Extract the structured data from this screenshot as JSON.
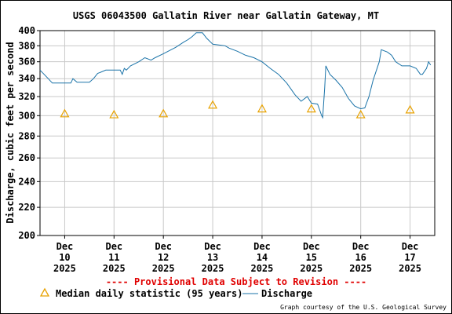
{
  "chart_data": {
    "type": "line",
    "title": "USGS 06043500 Gallatin River near Gallatin Gateway, MT",
    "ylabel": "Discharge, cubic feet per second",
    "y_scale": "log",
    "ylim": [
      200,
      400
    ],
    "y_ticks": [
      200,
      220,
      240,
      260,
      280,
      300,
      320,
      340,
      360,
      380,
      400
    ],
    "xlim": [
      "2025-12-09T12:00",
      "2025-12-17T12:00"
    ],
    "x_ticks": [
      {
        "month": "Dec",
        "day": "10",
        "year": "2025"
      },
      {
        "month": "Dec",
        "day": "11",
        "year": "2025"
      },
      {
        "month": "Dec",
        "day": "12",
        "year": "2025"
      },
      {
        "month": "Dec",
        "day": "13",
        "year": "2025"
      },
      {
        "month": "Dec",
        "day": "14",
        "year": "2025"
      },
      {
        "month": "Dec",
        "day": "15",
        "year": "2025"
      },
      {
        "month": "Dec",
        "day": "16",
        "year": "2025"
      },
      {
        "month": "Dec",
        "day": "17",
        "year": "2025"
      }
    ],
    "grid": true,
    "series": [
      {
        "name": "Discharge",
        "color": "#1a73a8",
        "points": [
          [
            "2025-12-09T12:00",
            350
          ],
          [
            "2025-12-09T14:00",
            345
          ],
          [
            "2025-12-09T16:00",
            340
          ],
          [
            "2025-12-09T18:00",
            335
          ],
          [
            "2025-12-09T21:00",
            335
          ],
          [
            "2025-12-10T00:00",
            335
          ],
          [
            "2025-12-10T03:00",
            335
          ],
          [
            "2025-12-10T04:00",
            340
          ],
          [
            "2025-12-10T06:00",
            336
          ],
          [
            "2025-12-10T12:00",
            336
          ],
          [
            "2025-12-10T14:00",
            340
          ],
          [
            "2025-12-10T16:00",
            346
          ],
          [
            "2025-12-10T20:00",
            350
          ],
          [
            "2025-12-11T00:00",
            350
          ],
          [
            "2025-12-11T03:00",
            350
          ],
          [
            "2025-12-11T04:00",
            345
          ],
          [
            "2025-12-11T05:00",
            352
          ],
          [
            "2025-12-11T06:00",
            350
          ],
          [
            "2025-12-11T08:00",
            355
          ],
          [
            "2025-12-11T12:00",
            360
          ],
          [
            "2025-12-11T15:00",
            365
          ],
          [
            "2025-12-11T18:00",
            362
          ],
          [
            "2025-12-11T20:00",
            365
          ],
          [
            "2025-12-12T00:00",
            370
          ],
          [
            "2025-12-12T06:00",
            378
          ],
          [
            "2025-12-12T10:00",
            385
          ],
          [
            "2025-12-12T12:00",
            388
          ],
          [
            "2025-12-12T14:00",
            392
          ],
          [
            "2025-12-12T16:00",
            397
          ],
          [
            "2025-12-12T19:00",
            397
          ],
          [
            "2025-12-12T21:00",
            390
          ],
          [
            "2025-12-13T00:00",
            382
          ],
          [
            "2025-12-13T06:00",
            380
          ],
          [
            "2025-12-13T08:00",
            377
          ],
          [
            "2025-12-13T12:00",
            373
          ],
          [
            "2025-12-13T16:00",
            368
          ],
          [
            "2025-12-13T20:00",
            365
          ],
          [
            "2025-12-14T00:00",
            360
          ],
          [
            "2025-12-14T04:00",
            352
          ],
          [
            "2025-12-14T08:00",
            345
          ],
          [
            "2025-12-14T12:00",
            335
          ],
          [
            "2025-12-14T16:00",
            322
          ],
          [
            "2025-12-14T19:00",
            315
          ],
          [
            "2025-12-14T22:00",
            320
          ],
          [
            "2025-12-15T00:00",
            313
          ],
          [
            "2025-12-15T03:00",
            312
          ],
          [
            "2025-12-15T05:00",
            300
          ],
          [
            "2025-12-15T05:30",
            298
          ],
          [
            "2025-12-15T06:30",
            330
          ],
          [
            "2025-12-15T07:00",
            355
          ],
          [
            "2025-12-15T09:00",
            345
          ],
          [
            "2025-12-15T12:00",
            338
          ],
          [
            "2025-12-15T15:00",
            330
          ],
          [
            "2025-12-15T18:00",
            318
          ],
          [
            "2025-12-15T21:00",
            310
          ],
          [
            "2025-12-16T00:00",
            307
          ],
          [
            "2025-12-16T02:00",
            308
          ],
          [
            "2025-12-16T04:00",
            320
          ],
          [
            "2025-12-16T06:00",
            338
          ],
          [
            "2025-12-16T09:00",
            360
          ],
          [
            "2025-12-16T10:00",
            375
          ],
          [
            "2025-12-16T13:00",
            372
          ],
          [
            "2025-12-16T15:00",
            368
          ],
          [
            "2025-12-16T17:00",
            360
          ],
          [
            "2025-12-16T20:00",
            355
          ],
          [
            "2025-12-17T00:00",
            355
          ],
          [
            "2025-12-17T03:00",
            352
          ],
          [
            "2025-12-17T05:00",
            345
          ],
          [
            "2025-12-17T06:00",
            345
          ],
          [
            "2025-12-17T08:00",
            352
          ],
          [
            "2025-12-17T09:00",
            360
          ],
          [
            "2025-12-17T10:00",
            356
          ]
        ]
      },
      {
        "name": "Median daily statistic (95 years)",
        "marker": "triangle",
        "color": "#e8a200",
        "points": [
          [
            "2025-12-10T00:00",
            302
          ],
          [
            "2025-12-11T00:00",
            301
          ],
          [
            "2025-12-12T00:00",
            302
          ],
          [
            "2025-12-13T00:00",
            311
          ],
          [
            "2025-12-14T00:00",
            307
          ],
          [
            "2025-12-15T00:00",
            307
          ],
          [
            "2025-12-16T00:00",
            301
          ],
          [
            "2025-12-17T00:00",
            306
          ]
        ]
      }
    ],
    "provisional_note": "---- Provisional Data Subject to Revision ----",
    "legend": {
      "placement": "bottom",
      "median_label": "Median daily statistic (95 years)",
      "discharge_label": "Discharge"
    },
    "credit": "Graph courtesy of the U.S. Geological Survey"
  }
}
